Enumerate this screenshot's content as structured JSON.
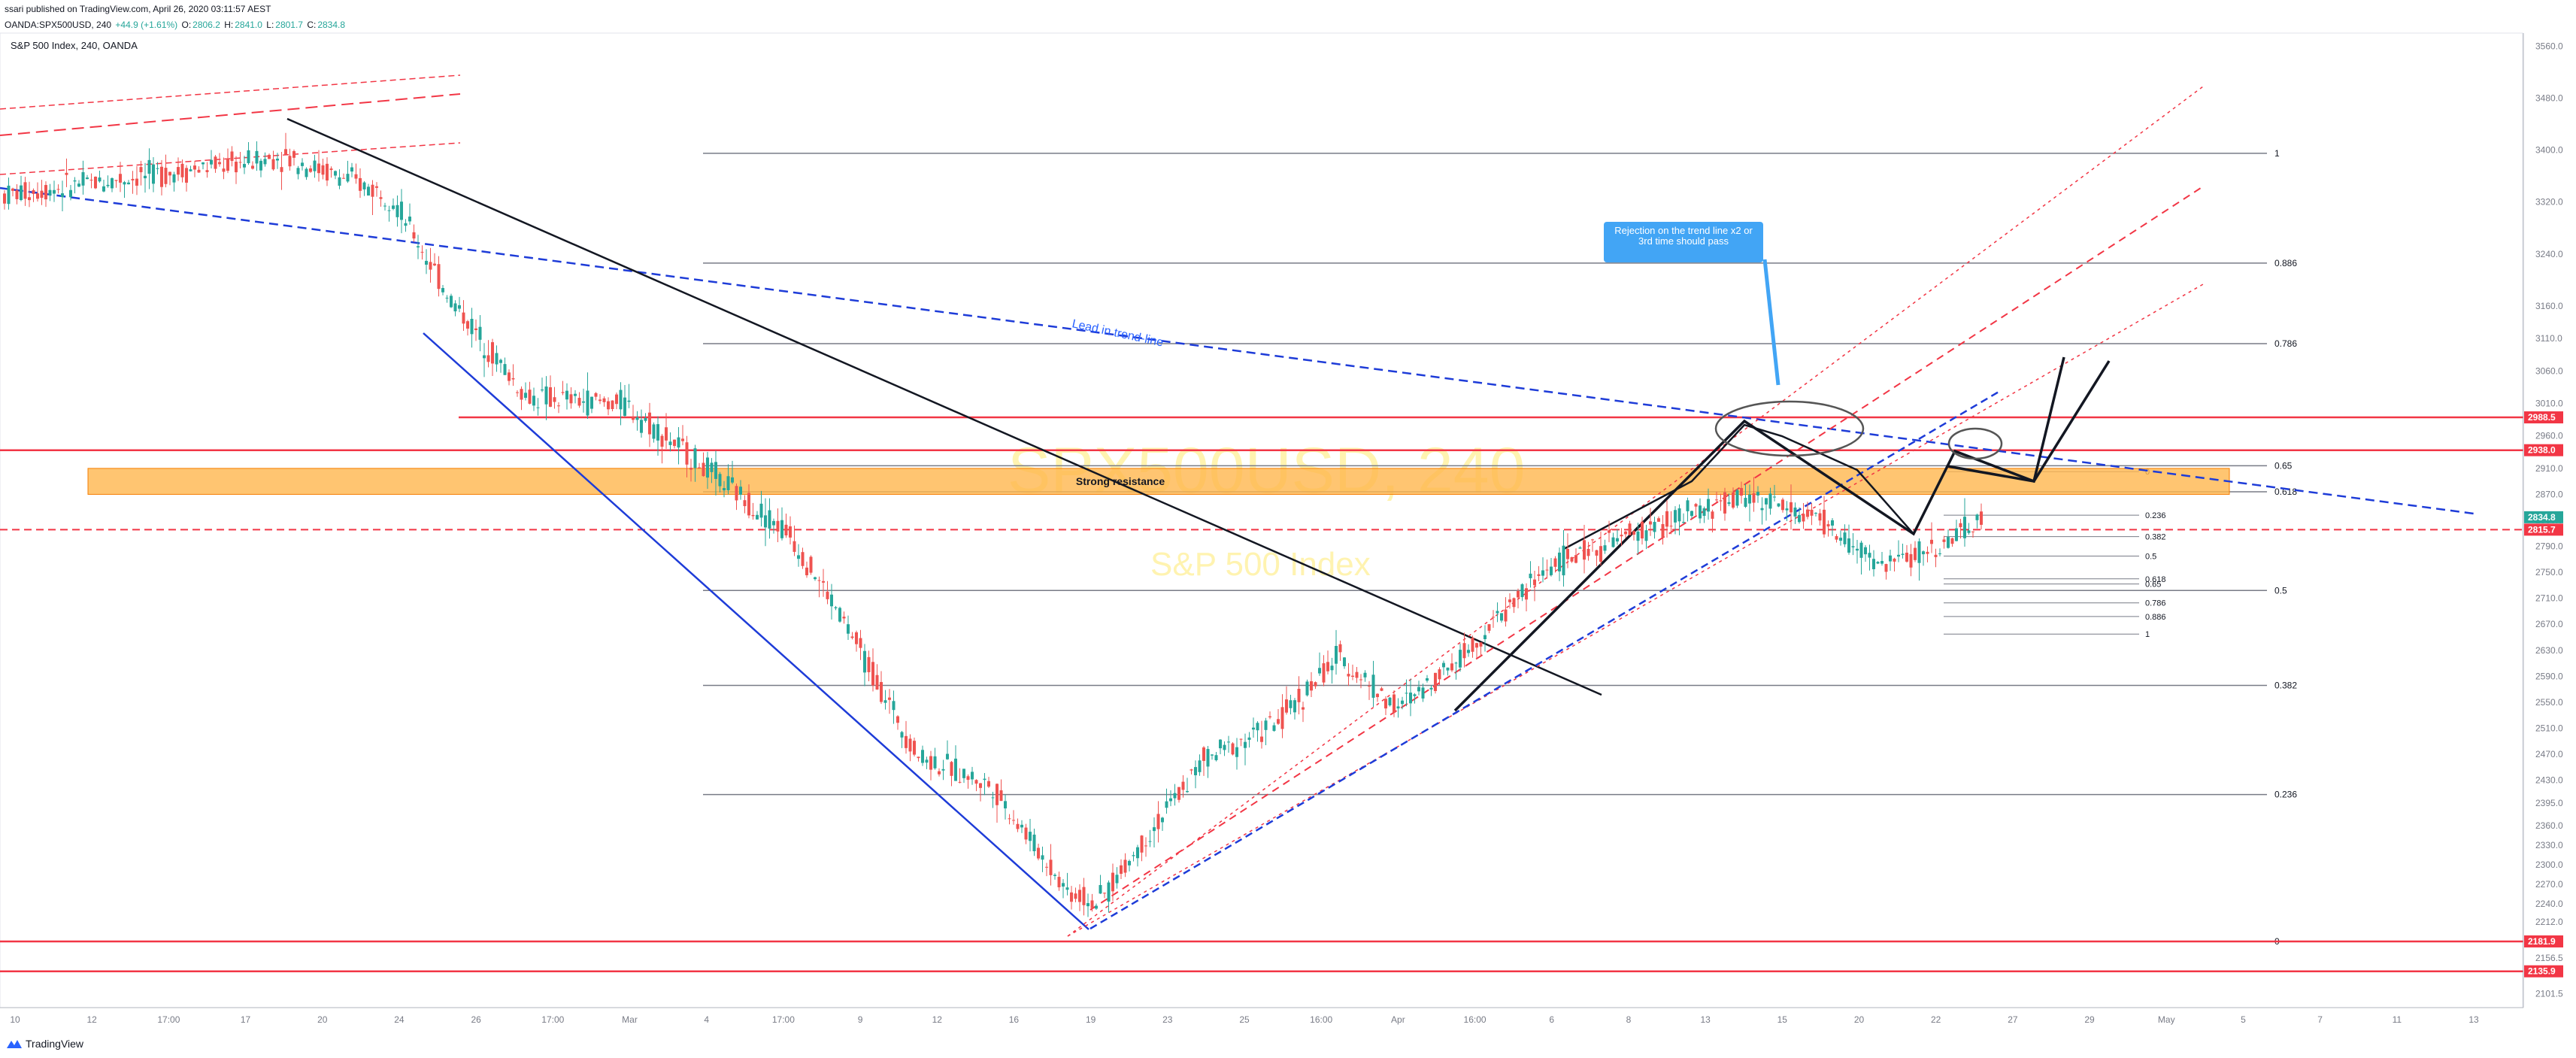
{
  "header": {
    "publisher_line": "ssari published on TradingView.com, April 26, 2020 03:11:57 AEST",
    "symbol": "OANDA:SPX500USD, 240",
    "change": "+44.9 (+1.61%)",
    "o_label": "O:",
    "o_value": "2806.2",
    "h_label": "H:",
    "h_value": "2841.0",
    "l_label": "L:",
    "l_value": "2801.7",
    "c_label": "C:",
    "c_value": "2834.8"
  },
  "footer": {
    "brand": "TradingView"
  },
  "colors": {
    "up": "#26a69a",
    "down": "#ef5350",
    "resistance_box": "#ffb74d",
    "red_line": "#f23645",
    "blue_line": "#1e3cd8",
    "callout": "#42a5f5",
    "current_price": "#26a69a"
  },
  "chart_data": {
    "type": "candlestick",
    "title": "S&P 500 Index, 240, OANDA",
    "watermark_symbol": "SPX500USD, 240",
    "watermark_name": "S&P 500 Index",
    "ylim": [
      2080,
      3580
    ],
    "y_ticks": [
      2101.5,
      2156.5,
      2212.0,
      2240.0,
      2270.0,
      2300.0,
      2330.0,
      2360.0,
      2395.0,
      2430.0,
      2470.0,
      2510.0,
      2550.0,
      2590.0,
      2630.0,
      2670.0,
      2710.0,
      2750.0,
      2790.0,
      2830.0,
      2870.0,
      2910.0,
      2960.0,
      3010.0,
      3060.0,
      3110.0,
      3160.0,
      3240.0,
      3320.0,
      3400.0,
      3480.0,
      3560.0
    ],
    "x_ticks": [
      "10",
      "12",
      "17:00",
      "17",
      "20",
      "24",
      "26",
      "17:00",
      "Mar",
      "4",
      "17:00",
      "9",
      "12",
      "16",
      "19",
      "23",
      "25",
      "16:00",
      "Apr",
      "16:00",
      "6",
      "8",
      "13",
      "15",
      "20",
      "22",
      "27",
      "29",
      "May",
      "5",
      "7",
      "11",
      "13"
    ],
    "price_labels": [
      {
        "value": 2988.5,
        "text": "2988.5",
        "color": "#f23645"
      },
      {
        "value": 2938.0,
        "text": "2938.0",
        "color": "#f23645"
      },
      {
        "value": 2834.8,
        "text": "2834.8",
        "color": "#26a69a"
      },
      {
        "value": 2815.7,
        "text": "2815.7",
        "color": "#f23645"
      },
      {
        "value": 2181.9,
        "text": "2181.9",
        "color": "#f23645"
      },
      {
        "value": 2135.9,
        "text": "2135.9",
        "color": "#f23645"
      }
    ],
    "fib_large": {
      "levels": [
        {
          "ratio": "1",
          "price": 3395
        },
        {
          "ratio": "0.886",
          "price": 3226
        },
        {
          "ratio": "0.786",
          "price": 3102
        },
        {
          "ratio": "0.65",
          "price": 2914
        },
        {
          "ratio": "0.618",
          "price": 2874
        },
        {
          "ratio": "0.5",
          "price": 2722
        },
        {
          "ratio": "0.382",
          "price": 2576
        },
        {
          "ratio": "0.236",
          "price": 2408
        },
        {
          "ratio": "0",
          "price": 2182
        }
      ]
    },
    "fib_small": {
      "levels": [
        {
          "ratio": "0",
          "price": 2905
        },
        {
          "ratio": "0.236",
          "price": 2838
        },
        {
          "ratio": "0.382",
          "price": 2805
        },
        {
          "ratio": "0.5",
          "price": 2775
        },
        {
          "ratio": "0.618",
          "price": 2740
        },
        {
          "ratio": "0.65",
          "price": 2732
        },
        {
          "ratio": "0.786",
          "price": 2703
        },
        {
          "ratio": "0.886",
          "price": 2682
        },
        {
          "ratio": "1",
          "price": 2655
        }
      ]
    },
    "resistance_box": {
      "label": "Strong resistance",
      "top": 2910,
      "bottom": 2870
    },
    "annotations": {
      "lead_trend_line": "Lead in trend-line",
      "callout": "Rejection on the trend line x2 or 3rd time should pass"
    }
  }
}
